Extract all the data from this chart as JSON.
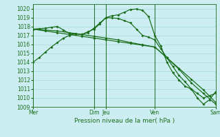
{
  "xlabel": "Pression niveau de la mer( hPa )",
  "bg_color": "#cceef2",
  "grid_color": "#aadddd",
  "line_color": "#1a6e1a",
  "ylim": [
    1009,
    1020.5
  ],
  "yticks": [
    1009,
    1010,
    1011,
    1012,
    1013,
    1014,
    1015,
    1016,
    1017,
    1018,
    1019,
    1020
  ],
  "xlim": [
    0,
    15
  ],
  "vline_positions": [
    0,
    5,
    6,
    10,
    15
  ],
  "xtick_positions": [
    0,
    5,
    6,
    10,
    15
  ],
  "xtick_labels": [
    "Mer",
    "Dim",
    "Jeu",
    "Ven",
    "Sam"
  ],
  "line1": {
    "x": [
      0,
      0.5,
      1,
      1.5,
      2,
      2.5,
      3,
      3.5,
      4,
      4.5,
      5,
      5.5,
      6,
      6.5,
      7,
      7.5,
      8,
      8.5,
      9,
      9.5,
      10,
      10.5,
      11,
      11.5,
      12,
      12.5,
      13,
      13.5,
      14,
      14.5,
      15
    ],
    "y": [
      1014,
      1014.5,
      1015.1,
      1015.7,
      1016.2,
      1016.7,
      1017.0,
      1017.2,
      1017.1,
      1017.3,
      1017.8,
      1018.4,
      1019.0,
      1019.2,
      1019.3,
      1019.6,
      1019.9,
      1019.95,
      1019.8,
      1019.1,
      1017.0,
      1015.8,
      1014.0,
      1012.8,
      1012.0,
      1011.3,
      1011.0,
      1010.0,
      1009.3,
      1009.8,
      1010.7
    ]
  },
  "line2": {
    "x": [
      0,
      0.5,
      1,
      1.5,
      2,
      2.5,
      3,
      3.5,
      4,
      4.5,
      5,
      5.5,
      6,
      6.5,
      7,
      7.5,
      8,
      8.5,
      9,
      9.5,
      10,
      10.5,
      11,
      11.5,
      12,
      12.5,
      13,
      13.5,
      14,
      14.5,
      15
    ],
    "y": [
      1017.7,
      1017.75,
      1017.8,
      1017.9,
      1018.0,
      1017.6,
      1017.2,
      1017.15,
      1017.1,
      1017.4,
      1017.7,
      1018.3,
      1019.0,
      1018.95,
      1018.9,
      1018.65,
      1018.4,
      1017.7,
      1017.0,
      1016.8,
      1016.5,
      1015.5,
      1014.5,
      1013.5,
      1012.5,
      1011.8,
      1011.0,
      1010.5,
      1010.0,
      1010.25,
      1010.5
    ]
  },
  "line3": {
    "x": [
      0,
      1,
      2,
      3,
      4,
      5,
      6,
      7,
      8,
      9,
      10,
      11,
      12,
      13,
      14,
      15
    ],
    "y": [
      1017.7,
      1017.5,
      1017.3,
      1017.1,
      1016.9,
      1016.7,
      1016.5,
      1016.3,
      1016.1,
      1015.9,
      1015.7,
      1014.5,
      1013.3,
      1012.1,
      1010.9,
      1009.5
    ]
  },
  "line4": {
    "x": [
      0,
      1,
      2,
      3,
      4,
      5,
      6,
      7,
      8,
      9,
      10,
      11,
      12,
      13,
      14,
      15
    ],
    "y": [
      1017.7,
      1017.6,
      1017.5,
      1017.3,
      1017.1,
      1016.9,
      1016.7,
      1016.5,
      1016.2,
      1015.95,
      1015.7,
      1014.5,
      1013.2,
      1011.7,
      1010.5,
      1009.3
    ]
  }
}
